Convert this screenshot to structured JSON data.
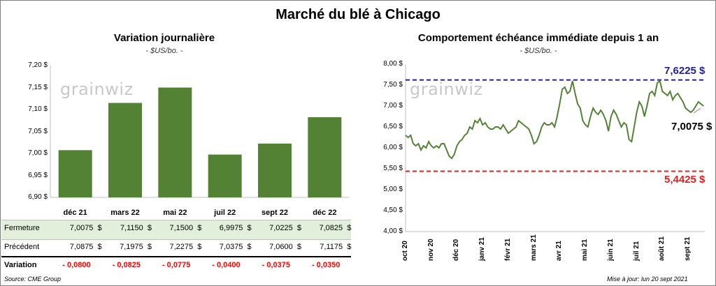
{
  "title": "Marché du blé à Chicago",
  "left": {
    "title": "Variation  journalière",
    "unit": "- $US/bo. -",
    "watermark": "grainwiz",
    "row_labels": {
      "close": "Fermeture",
      "previous": "Précédent",
      "change": "Variation"
    },
    "closes": [
      "7,0075  $",
      "7,1150  $",
      "7,1500  $",
      "6,9975  $",
      "7,0225  $",
      "7,0825  $"
    ],
    "previous": [
      "7,0875  $",
      "7,1975  $",
      "7,2275  $",
      "7,0375  $",
      "7,0600  $",
      "7,1175  $"
    ],
    "changes": [
      "- 0,0800",
      "- 0,0825",
      "- 0,0775",
      "- 0,0400",
      "- 0,0375",
      "- 0,0350"
    ],
    "colors": {
      "bar": "#548235",
      "close_row_bg": "#e2efda",
      "change_text": "#ff0000"
    }
  },
  "right": {
    "title": "Comportement  échéance immédiate depuis 1 an",
    "unit": "- $US/bo. -",
    "watermark": "grainwiz",
    "high_label": "7,6225 $",
    "low_label": "5,4425 $",
    "last_label": "7,0075 $",
    "colors": {
      "line": "#548235",
      "high": "#1f1fa0",
      "low": "#e02020"
    }
  },
  "footer": {
    "source": "Source: CME Group",
    "updated": "Mise à jour: lun 20 sept 2021"
  },
  "chart_data": [
    {
      "type": "bar",
      "title": "Variation  journalière",
      "categories": [
        "déc 21",
        "mars 22",
        "mai 22",
        "juil 22",
        "sept 22",
        "déc 22"
      ],
      "values": [
        7.0075,
        7.115,
        7.15,
        6.9975,
        7.0225,
        7.0825
      ],
      "ylim": [
        6.9,
        7.2
      ],
      "yticks": [
        "6,90 $",
        "6,95 $",
        "7,00 $",
        "7,05 $",
        "7,10 $",
        "7,15 $",
        "7,20 $"
      ],
      "grid": false
    },
    {
      "type": "line",
      "title": "Comportement  échéance immédiate depuis 1 an",
      "ylim": [
        4.0,
        8.0
      ],
      "yticks": [
        "4,00 $",
        "4,50 $",
        "5,00 $",
        "5,50 $",
        "6,00 $",
        "6,50 $",
        "7,00 $",
        "7,50 $",
        "8,00 $"
      ],
      "xticks": [
        "oct 20",
        "nov 20",
        "déc 20",
        "janv 21",
        "févr 21",
        "mars 21",
        "avr 21",
        "mai 21",
        "juin 21",
        "juil 21",
        "août 21",
        "sept 21"
      ],
      "x_range": [
        0,
        11.65
      ],
      "reference_lines": [
        {
          "name": "high",
          "value": 7.6225,
          "style": "dashed"
        },
        {
          "name": "low",
          "value": 5.4425,
          "style": "dashed"
        }
      ],
      "series": [
        {
          "x": [
            0,
            0.1,
            0.2,
            0.3,
            0.4,
            0.5,
            0.6,
            0.7,
            0.8,
            0.9,
            1.0,
            1.1,
            1.2,
            1.3,
            1.4,
            1.5,
            1.6,
            1.7,
            1.8,
            1.9,
            2.0,
            2.1,
            2.2,
            2.3,
            2.4,
            2.5,
            2.6,
            2.7,
            2.8,
            2.9,
            3.0,
            3.1,
            3.2,
            3.3,
            3.4,
            3.5,
            3.6,
            3.7,
            3.8,
            3.9,
            4.0,
            4.1,
            4.2,
            4.3,
            4.4,
            4.5,
            4.6,
            4.7,
            4.8,
            4.9,
            5.0,
            5.1,
            5.2,
            5.3,
            5.4,
            5.5,
            5.6,
            5.7,
            5.8,
            5.9,
            6.0,
            6.1,
            6.2,
            6.3,
            6.4,
            6.5,
            6.6,
            6.7,
            6.8,
            6.9,
            7.0,
            7.1,
            7.2,
            7.3,
            7.4,
            7.5,
            7.6,
            7.7,
            7.8,
            7.9,
            8.0,
            8.1,
            8.2,
            8.3,
            8.4,
            8.5,
            8.6,
            8.7,
            8.8,
            8.9,
            9.0,
            9.1,
            9.2,
            9.3,
            9.4,
            9.5,
            9.6,
            9.7,
            9.8,
            9.9,
            10.0,
            10.1,
            10.2,
            10.3,
            10.4,
            10.5,
            10.6,
            10.7,
            10.8,
            10.9,
            11.0,
            11.1,
            11.2,
            11.3,
            11.4,
            11.5,
            11.6
          ],
          "values": [
            6.3,
            6.25,
            6.3,
            6.1,
            6.05,
            6.1,
            5.95,
            6.05,
            6.0,
            6.15,
            6.05,
            6.0,
            6.05,
            6.0,
            6.1,
            6.1,
            5.95,
            5.8,
            5.75,
            5.85,
            6.05,
            6.15,
            6.2,
            6.3,
            6.35,
            6.5,
            6.45,
            6.65,
            6.6,
            6.7,
            6.55,
            6.6,
            6.5,
            6.45,
            6.45,
            6.5,
            6.5,
            6.45,
            6.55,
            6.45,
            6.35,
            6.4,
            6.45,
            6.5,
            6.65,
            6.6,
            6.55,
            6.5,
            6.45,
            6.3,
            6.1,
            6.15,
            6.3,
            6.5,
            6.6,
            6.55,
            6.55,
            6.6,
            6.5,
            6.75,
            7.05,
            7.4,
            7.45,
            7.3,
            7.35,
            7.6,
            7.3,
            7.05,
            6.95,
            6.65,
            6.55,
            6.5,
            6.75,
            6.95,
            6.85,
            6.8,
            6.9,
            6.8,
            6.65,
            6.4,
            6.75,
            6.9,
            6.8,
            6.65,
            6.5,
            6.6,
            6.55,
            6.2,
            6.15,
            6.5,
            6.85,
            7.1,
            7.0,
            6.75,
            7.0,
            7.3,
            7.35,
            7.25,
            7.55,
            7.6,
            7.35,
            7.3,
            7.25,
            7.35,
            7.15,
            7.25,
            7.3,
            7.2,
            7.1,
            6.95,
            6.9,
            6.85,
            6.9,
            7.0,
            7.1,
            7.05,
            7.0
          ]
        }
      ]
    }
  ]
}
